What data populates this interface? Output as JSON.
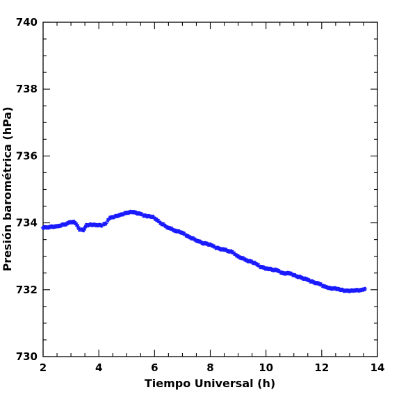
{
  "chart_data": {
    "type": "scatter",
    "xlabel": "Tiempo Universal (h)",
    "ylabel": "Presión barométrica (hPa)",
    "xlim": [
      2,
      14
    ],
    "ylim": [
      730,
      740
    ],
    "x_major_ticks": [
      2,
      4,
      6,
      8,
      10,
      12,
      14
    ],
    "x_tick_labels": [
      "2",
      "4",
      "6",
      "8",
      "10",
      "12",
      "14"
    ],
    "x_minor_step": 0.5,
    "y_major_ticks": [
      730,
      732,
      734,
      736,
      738,
      740
    ],
    "y_tick_labels": [
      "730",
      "732",
      "734",
      "736",
      "738",
      "740"
    ],
    "y_minor_step": 0.5,
    "grid": false,
    "marker": "star",
    "series": [
      {
        "color": "#1a1aff",
        "points": [
          [
            2.0,
            733.85
          ],
          [
            2.25,
            733.88
          ],
          [
            2.5,
            733.9
          ],
          [
            2.75,
            733.95
          ],
          [
            3.0,
            734.02
          ],
          [
            3.1,
            734.03
          ],
          [
            3.2,
            733.95
          ],
          [
            3.3,
            733.8
          ],
          [
            3.45,
            733.78
          ],
          [
            3.55,
            733.93
          ],
          [
            3.7,
            733.95
          ],
          [
            3.9,
            733.93
          ],
          [
            4.1,
            733.92
          ],
          [
            4.25,
            733.98
          ],
          [
            4.4,
            734.15
          ],
          [
            4.6,
            734.2
          ],
          [
            4.8,
            734.25
          ],
          [
            5.0,
            734.3
          ],
          [
            5.2,
            734.32
          ],
          [
            5.45,
            734.28
          ],
          [
            5.6,
            734.22
          ],
          [
            5.8,
            734.2
          ],
          [
            5.95,
            734.18
          ],
          [
            6.2,
            734.0
          ],
          [
            6.5,
            733.85
          ],
          [
            6.8,
            733.75
          ],
          [
            7.0,
            733.7
          ],
          [
            7.2,
            733.6
          ],
          [
            7.45,
            733.5
          ],
          [
            7.7,
            733.4
          ],
          [
            8.0,
            733.35
          ],
          [
            8.2,
            733.25
          ],
          [
            8.5,
            733.2
          ],
          [
            8.8,
            733.12
          ],
          [
            9.0,
            733.0
          ],
          [
            9.3,
            732.88
          ],
          [
            9.6,
            732.8
          ],
          [
            9.8,
            732.68
          ],
          [
            10.1,
            732.62
          ],
          [
            10.4,
            732.58
          ],
          [
            10.6,
            732.5
          ],
          [
            10.9,
            732.48
          ],
          [
            11.1,
            732.4
          ],
          [
            11.4,
            732.33
          ],
          [
            11.6,
            732.25
          ],
          [
            11.9,
            732.18
          ],
          [
            12.1,
            732.1
          ],
          [
            12.3,
            732.05
          ],
          [
            12.6,
            732.02
          ],
          [
            12.8,
            731.97
          ],
          [
            13.0,
            731.96
          ],
          [
            13.2,
            731.98
          ],
          [
            13.4,
            731.99
          ],
          [
            13.55,
            732.02
          ]
        ]
      }
    ]
  }
}
